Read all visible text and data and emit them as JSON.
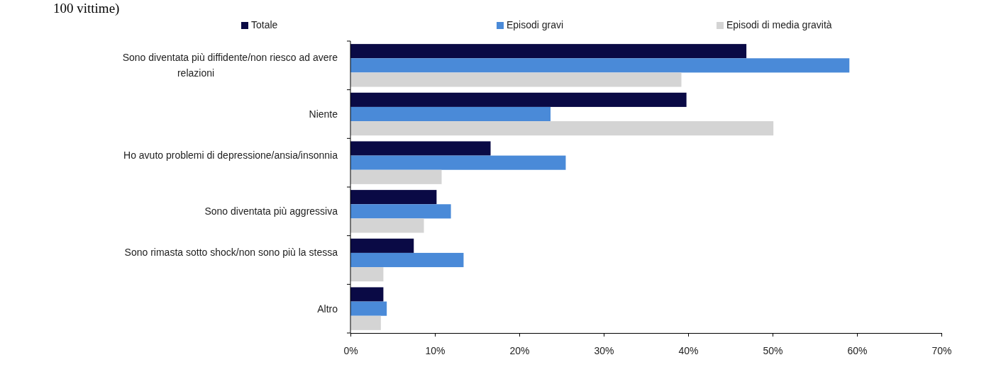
{
  "chart_data": {
    "type": "bar",
    "orientation": "horizontal",
    "annotations": [
      "100 vittime)"
    ],
    "categories": [
      "Sono diventata più diffidente/non riesco ad avere relazioni",
      "Niente",
      "Ho avuto problemi di depressione/ansia/insonnia",
      "Sono diventata più aggressiva",
      "Sono rimasta sotto shock/non sono più la stessa",
      "Altro"
    ],
    "series": [
      {
        "name": "Totale",
        "color": "#0a0a45",
        "values": [
          46.9,
          39.8,
          16.6,
          10.2,
          7.5,
          3.9
        ]
      },
      {
        "name": "Episodi gravi",
        "color": "#4a8ad8",
        "values": [
          59.1,
          23.7,
          25.5,
          11.9,
          13.4,
          4.3
        ]
      },
      {
        "name": "Episodi di media gravità",
        "color": "#d4d4d4",
        "values": [
          39.2,
          50.1,
          10.8,
          8.7,
          3.9,
          3.6
        ]
      }
    ],
    "xlim": [
      0,
      70
    ],
    "xticks": [
      {
        "value": 0,
        "label": "0%"
      },
      {
        "value": 10,
        "label": "10%"
      },
      {
        "value": 20,
        "label": "20%"
      },
      {
        "value": 30,
        "label": "30%"
      },
      {
        "value": 40,
        "label": "40%"
      },
      {
        "value": 50,
        "label": "50%"
      },
      {
        "value": 60,
        "label": "60%"
      },
      {
        "value": 70,
        "label": "70%"
      }
    ],
    "legend": "top",
    "grid": false
  }
}
